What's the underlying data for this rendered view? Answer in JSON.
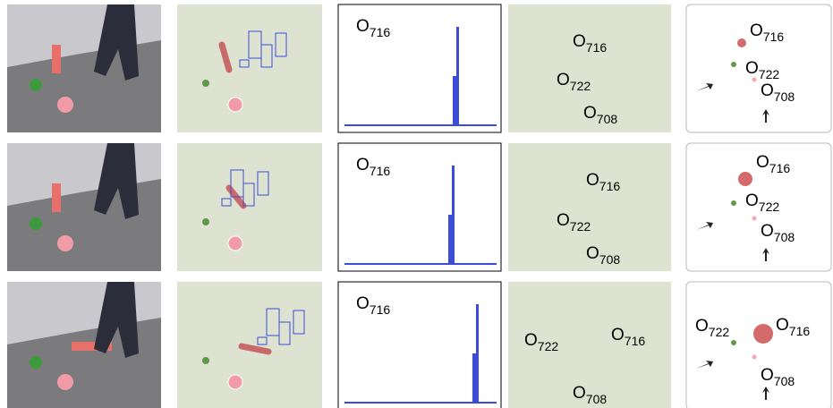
{
  "rows": [
    {
      "histogram_label": {
        "letter": "O",
        "index": "716"
      },
      "object_labels": [
        {
          "letter": "O",
          "index": "716"
        },
        {
          "letter": "O",
          "index": "722"
        },
        {
          "letter": "O",
          "index": "708"
        }
      ],
      "map_labels": [
        {
          "letter": "O",
          "index": "716"
        },
        {
          "letter": "O",
          "index": "722"
        },
        {
          "letter": "O",
          "index": "708"
        }
      ]
    },
    {
      "histogram_label": {
        "letter": "O",
        "index": "716"
      },
      "object_labels": [
        {
          "letter": "O",
          "index": "716"
        },
        {
          "letter": "O",
          "index": "722"
        },
        {
          "letter": "O",
          "index": "708"
        }
      ],
      "map_labels": [
        {
          "letter": "O",
          "index": "716"
        },
        {
          "letter": "O",
          "index": "722"
        },
        {
          "letter": "O",
          "index": "708"
        }
      ]
    },
    {
      "histogram_label": {
        "letter": "O",
        "index": "716"
      },
      "object_labels": [
        {
          "letter": "O",
          "index": "716"
        },
        {
          "letter": "O",
          "index": "722"
        },
        {
          "letter": "O",
          "index": "708"
        }
      ],
      "map_labels": [
        {
          "letter": "O",
          "index": "722"
        },
        {
          "letter": "O",
          "index": "716"
        },
        {
          "letter": "O",
          "index": "708"
        }
      ]
    }
  ]
}
